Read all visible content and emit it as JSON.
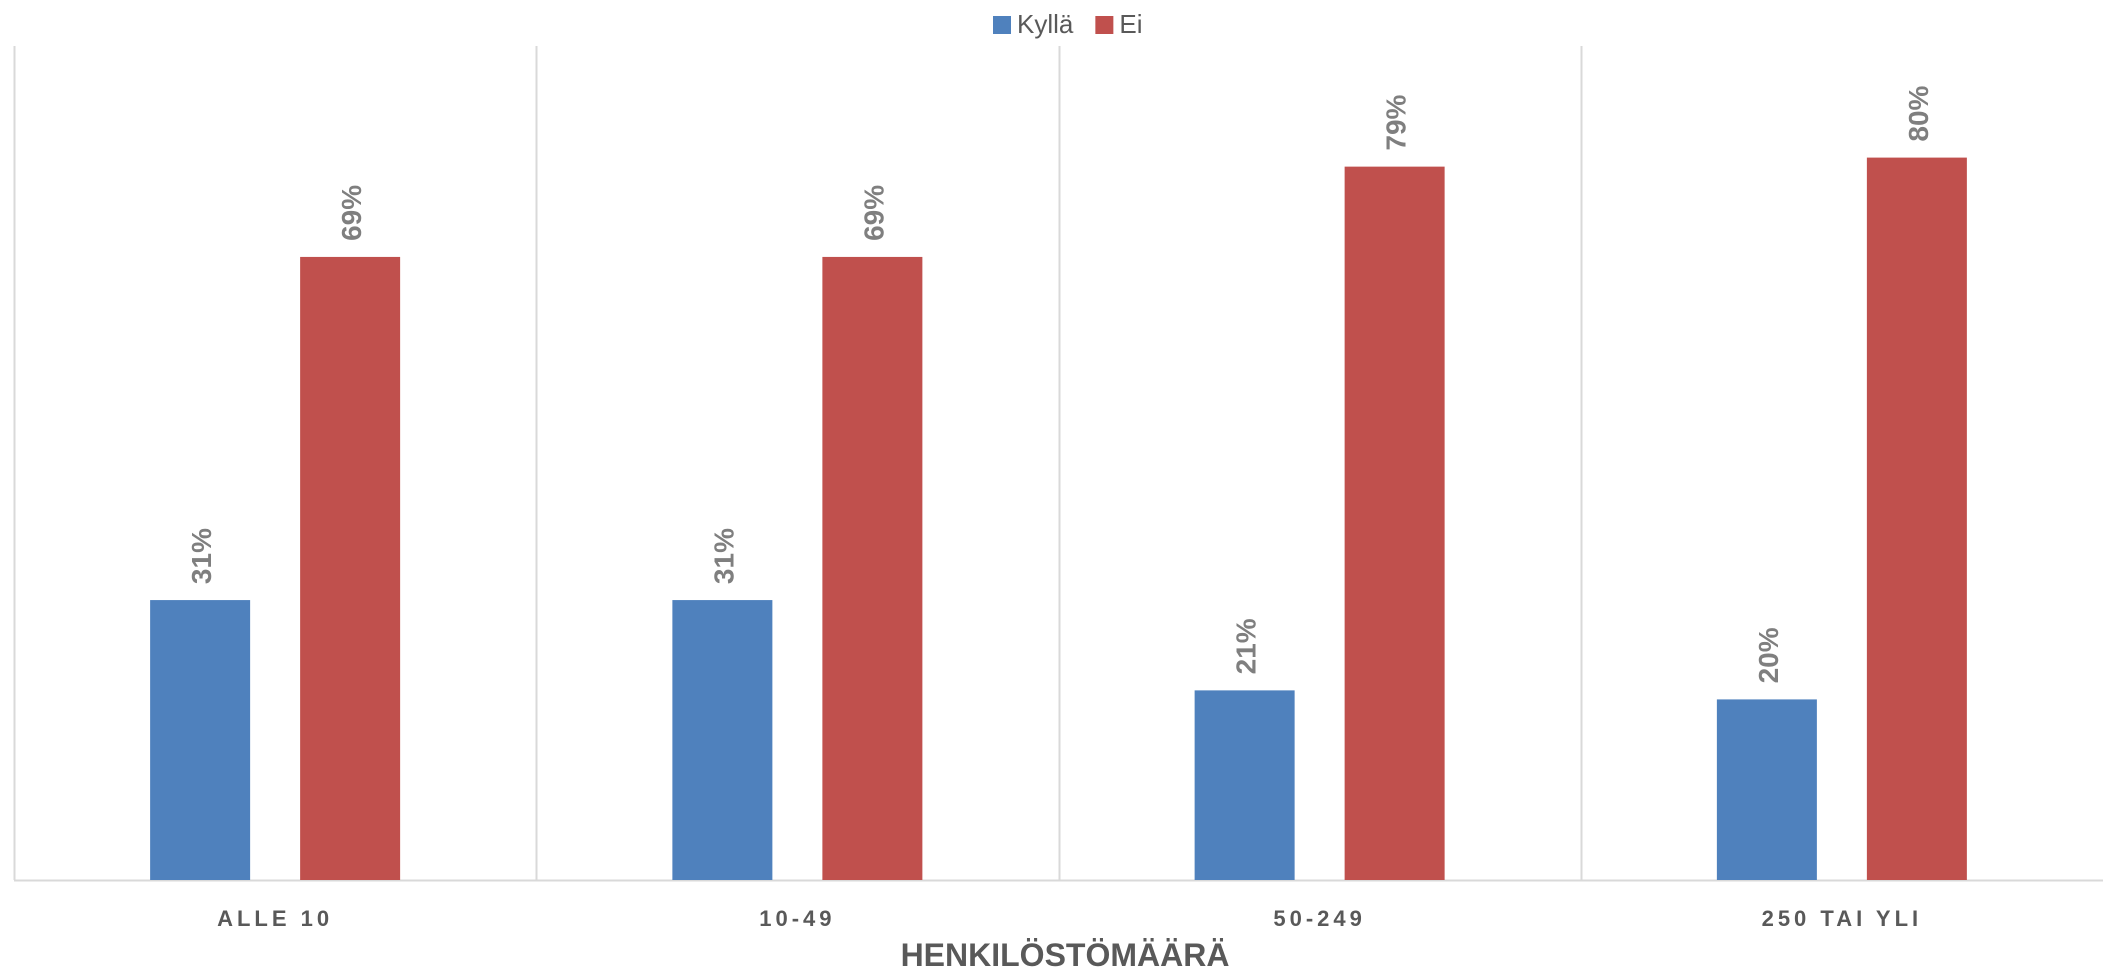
{
  "chart_data": {
    "type": "bar",
    "title": "",
    "xlabel": "HENKILÖSTÖMÄÄRÄ",
    "ylabel": "",
    "categories": [
      "ALLE 10",
      "10-49",
      "50-249",
      "250 TAI YLI"
    ],
    "series": [
      {
        "name": "Kyllä",
        "color": "#4F81BD",
        "values": [
          31,
          31,
          21,
          20
        ],
        "labels": [
          "31%",
          "31%",
          "21%",
          "20%"
        ]
      },
      {
        "name": "Ei",
        "color": "#C0504D",
        "values": [
          69,
          69,
          79,
          80
        ],
        "labels": [
          "69%",
          "69%",
          "79%",
          "80%"
        ]
      }
    ],
    "unit": "%",
    "ylim": [
      0,
      90
    ],
    "grid": false,
    "category_separators": true,
    "legend_position": "top-center",
    "data_label_orientation": "vertical"
  }
}
